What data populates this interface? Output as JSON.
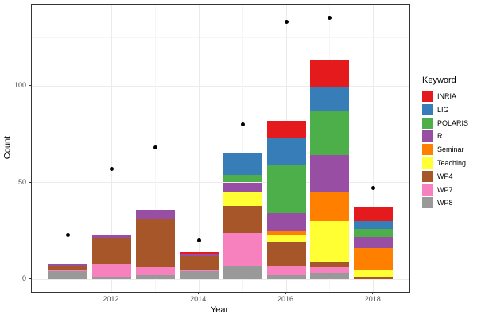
{
  "chart_data": {
    "type": "bar",
    "stacked": true,
    "title": "",
    "xlabel": "Year",
    "ylabel": "Count",
    "categories": [
      "2011",
      "2012",
      "2013",
      "2014",
      "2015",
      "2016",
      "2017",
      "2018"
    ],
    "series": [
      {
        "name": "INRIA",
        "color": "#E41A1C",
        "values": [
          0,
          0,
          0,
          1,
          0,
          9,
          14,
          7
        ]
      },
      {
        "name": "LIG",
        "color": "#377EB8",
        "values": [
          0,
          0,
          0,
          0,
          11,
          14,
          12,
          4
        ]
      },
      {
        "name": "POLARIS",
        "color": "#4DAF4A",
        "values": [
          0,
          0,
          0,
          0,
          4,
          25,
          23,
          4
        ]
      },
      {
        "name": "R",
        "color": "#984EA3",
        "values": [
          1,
          2,
          5,
          1,
          5,
          9,
          19,
          6
        ]
      },
      {
        "name": "Seminar",
        "color": "#FF7F00",
        "values": [
          0,
          0,
          0,
          0,
          0,
          2,
          15,
          11
        ]
      },
      {
        "name": "Teaching",
        "color": "#FFFF33",
        "values": [
          0,
          0,
          0,
          0,
          7,
          4,
          21,
          4
        ]
      },
      {
        "name": "WP4",
        "color": "#A65628",
        "values": [
          2,
          13,
          25,
          7,
          14,
          12,
          3,
          1
        ]
      },
      {
        "name": "WP7",
        "color": "#F781BF",
        "values": [
          1,
          7,
          4,
          1,
          17,
          5,
          3,
          0
        ]
      },
      {
        "name": "WP8",
        "color": "#999999",
        "values": [
          4,
          1,
          2,
          4,
          7,
          2,
          3,
          0
        ]
      }
    ],
    "stack_order_note": "stacked bottom-to-top in reverse legend order: WP8,WP7,WP4,Teaching,Seminar,R,POLARIS,LIG,INRIA",
    "bar_totals": [
      8,
      23,
      36,
      14,
      65,
      82,
      113,
      37
    ],
    "scatter_points": {
      "name": "yearly-total-dots",
      "color": "#000000",
      "values": [
        23,
        57,
        68,
        20,
        80,
        133,
        135,
        47
      ]
    },
    "y_major_ticks": [
      0,
      50,
      100
    ],
    "y_tick_labels": [
      "0",
      "50",
      "100"
    ],
    "y_minor_ticks": [
      25,
      75,
      125
    ],
    "x_labeled_years": [
      "2012",
      "2014",
      "2016",
      "2018"
    ],
    "ylim": [
      0,
      142
    ],
    "grid": true,
    "legend_title": "Keyword",
    "legend_position": "right"
  },
  "colors": {
    "background": "#FFFFFF",
    "panel_border": "#343434",
    "grid_major": "#EBEBEB",
    "grid_minor": "#F6F6F6",
    "tick_text": "#4D4D4D",
    "axis_title_text": "#000000"
  }
}
